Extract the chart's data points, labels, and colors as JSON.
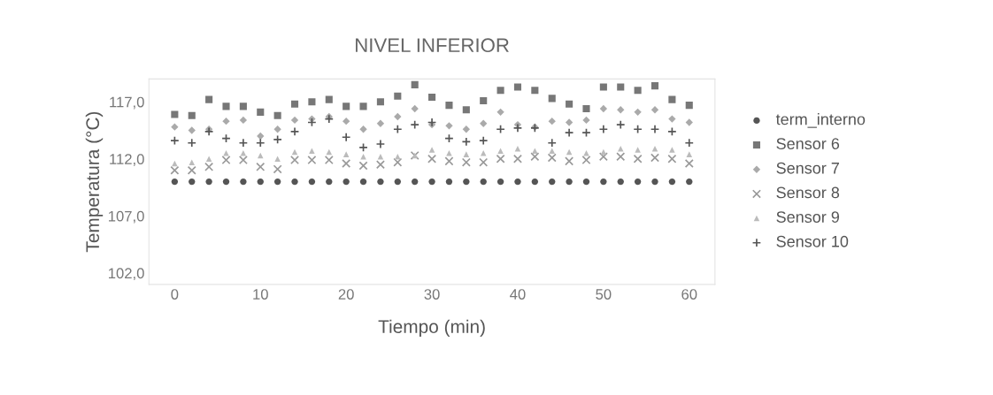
{
  "chart_data": {
    "type": "scatter",
    "title": "NIVEL INFERIOR",
    "xlabel": "Tiempo (min)",
    "ylabel": "Temperatura (°C)",
    "x": [
      0,
      2,
      4,
      6,
      8,
      10,
      12,
      14,
      16,
      18,
      20,
      22,
      24,
      26,
      28,
      30,
      32,
      34,
      36,
      38,
      40,
      42,
      44,
      46,
      48,
      50,
      52,
      54,
      56,
      58,
      60
    ],
    "series": [
      {
        "name": "term_interno",
        "color": "#555555",
        "marker": "circle",
        "values": [
          110.0,
          110.0,
          110.0,
          110.0,
          110.0,
          110.0,
          110.0,
          110.0,
          110.0,
          110.0,
          110.0,
          110.0,
          110.0,
          110.0,
          110.0,
          110.0,
          110.0,
          110.0,
          110.0,
          110.0,
          110.0,
          110.0,
          110.0,
          110.0,
          110.0,
          110.0,
          110.0,
          110.0,
          110.0,
          110.0,
          110.0
        ]
      },
      {
        "name": "Sensor 6",
        "color": "#777777",
        "marker": "square",
        "values": [
          115.9,
          115.8,
          117.2,
          116.6,
          116.6,
          116.1,
          115.8,
          116.8,
          117.0,
          117.2,
          116.6,
          116.6,
          117.0,
          117.5,
          118.5,
          117.4,
          116.7,
          116.3,
          117.1,
          118.0,
          118.3,
          118.0,
          117.3,
          116.8,
          116.4,
          118.3,
          118.3,
          118.0,
          118.4,
          117.2,
          116.7
        ]
      },
      {
        "name": "Sensor 7",
        "color": "#aaaaaa",
        "marker": "diamond",
        "values": [
          114.8,
          114.5,
          114.6,
          115.3,
          115.4,
          114.0,
          114.6,
          115.4,
          115.5,
          115.7,
          115.3,
          114.6,
          115.1,
          115.7,
          116.4,
          115.0,
          114.9,
          114.6,
          115.1,
          116.1,
          115.0,
          114.8,
          115.3,
          115.2,
          115.4,
          116.4,
          116.3,
          116.1,
          116.3,
          115.5,
          115.2
        ]
      },
      {
        "name": "Sensor 8",
        "color": "#999999",
        "marker": "cross",
        "values": [
          111.0,
          111.0,
          111.3,
          111.9,
          111.9,
          111.3,
          111.1,
          111.9,
          111.9,
          111.9,
          111.6,
          111.4,
          111.5,
          111.7,
          112.3,
          112.0,
          111.8,
          111.7,
          111.7,
          112.0,
          112.0,
          112.2,
          112.1,
          111.8,
          111.9,
          112.2,
          112.2,
          112.0,
          112.1,
          112.0,
          111.6
        ]
      },
      {
        "name": "Sensor 9",
        "color": "#bbbbbb",
        "marker": "triangle",
        "values": [
          111.6,
          111.7,
          112.0,
          112.5,
          112.5,
          112.3,
          112.0,
          112.6,
          112.7,
          112.6,
          112.4,
          112.2,
          112.2,
          112.2,
          112.3,
          112.8,
          112.5,
          112.4,
          112.5,
          112.7,
          112.9,
          112.7,
          112.7,
          112.6,
          112.5,
          112.6,
          112.9,
          112.8,
          112.9,
          112.8,
          112.4
        ]
      },
      {
        "name": "Sensor 10",
        "color": "#555555",
        "marker": "plus",
        "values": [
          113.6,
          113.4,
          114.4,
          113.8,
          113.4,
          113.4,
          113.7,
          114.4,
          115.2,
          115.5,
          113.9,
          113.0,
          113.3,
          114.6,
          115.0,
          115.2,
          113.8,
          113.5,
          113.6,
          114.6,
          114.7,
          114.7,
          113.4,
          114.3,
          114.3,
          114.6,
          115.0,
          114.6,
          114.6,
          114.4,
          113.4
        ]
      }
    ],
    "xlim": [
      -3,
      63
    ],
    "xticks": [
      0,
      10,
      20,
      30,
      40,
      50,
      60
    ],
    "ylim": [
      101,
      119
    ],
    "yticks": [
      {
        "value": 102,
        "label": "102,0"
      },
      {
        "value": 107,
        "label": "107,0"
      },
      {
        "value": 112,
        "label": "112,0"
      },
      {
        "value": 117,
        "label": "117,0"
      }
    ],
    "grid": false,
    "legend": "right"
  }
}
